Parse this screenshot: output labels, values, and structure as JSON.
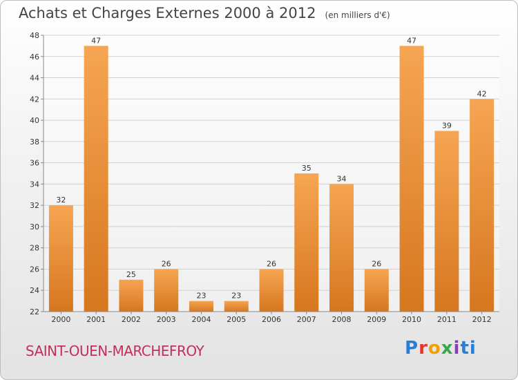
{
  "title": "Achats et Charges Externes 2000 à 2012",
  "unit": "(en milliers d'€)",
  "place": "SAINT-OUEN-MARCHEFROY",
  "logo": [
    "P",
    "r",
    "o",
    "x",
    "i",
    "ti"
  ],
  "colors": {
    "bar_light": "#f6a552",
    "bar_dark": "#d6771f",
    "place": "#c0305a"
  },
  "chart_data": {
    "type": "bar",
    "title": "Achats et Charges Externes 2000 à 2012",
    "xlabel": "",
    "ylabel": "",
    "categories": [
      "2000",
      "2001",
      "2002",
      "2003",
      "2004",
      "2005",
      "2006",
      "2007",
      "2008",
      "2009",
      "2010",
      "2011",
      "2012"
    ],
    "values": [
      32,
      47,
      25,
      26,
      23,
      23,
      26,
      35,
      34,
      26,
      47,
      39,
      42
    ],
    "ylim": [
      22,
      48
    ],
    "yticks": [
      22,
      24,
      26,
      28,
      30,
      32,
      34,
      36,
      38,
      40,
      42,
      44,
      46,
      48
    ],
    "grid": true,
    "legend": "none"
  }
}
